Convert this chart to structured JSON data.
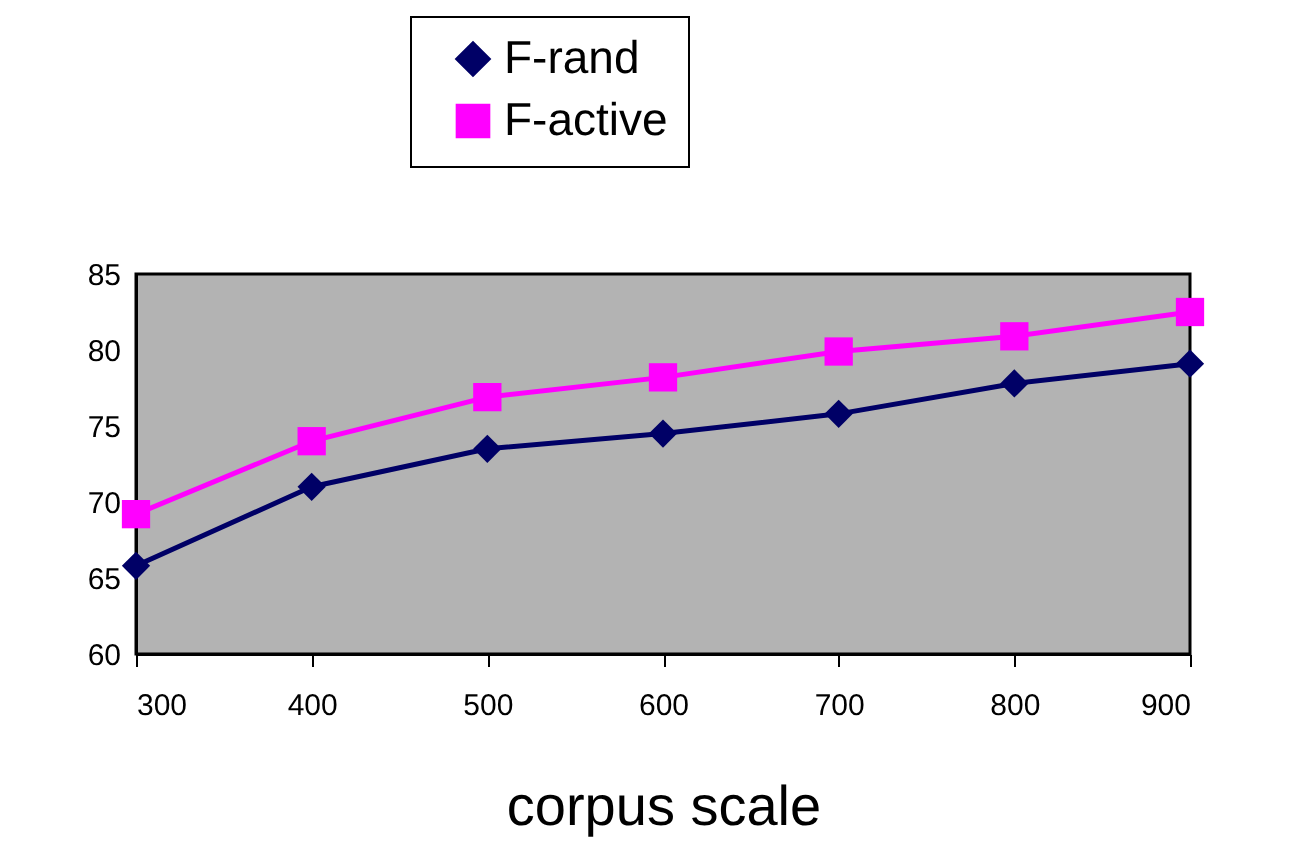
{
  "chart_data": {
    "type": "line",
    "xlabel": "corpus scale",
    "x": [
      300,
      400,
      500,
      600,
      700,
      800,
      900
    ],
    "series": [
      {
        "name": "F-rand",
        "color": "#000066",
        "marker": "diamond",
        "values": [
          65.8,
          71.0,
          73.5,
          74.5,
          75.8,
          77.8,
          79.1
        ]
      },
      {
        "name": "F-active",
        "color": "#ff00ff",
        "marker": "square",
        "values": [
          69.2,
          74.0,
          76.9,
          78.2,
          79.9,
          80.9,
          82.5
        ]
      }
    ],
    "xlim": [
      300,
      900
    ],
    "xticks": [
      300,
      400,
      500,
      600,
      700,
      800,
      900
    ],
    "ylim": [
      60,
      85
    ],
    "yticks": [
      60,
      65,
      70,
      75,
      80,
      85
    ],
    "grid": false,
    "legend": "top",
    "line_style": "solid"
  }
}
